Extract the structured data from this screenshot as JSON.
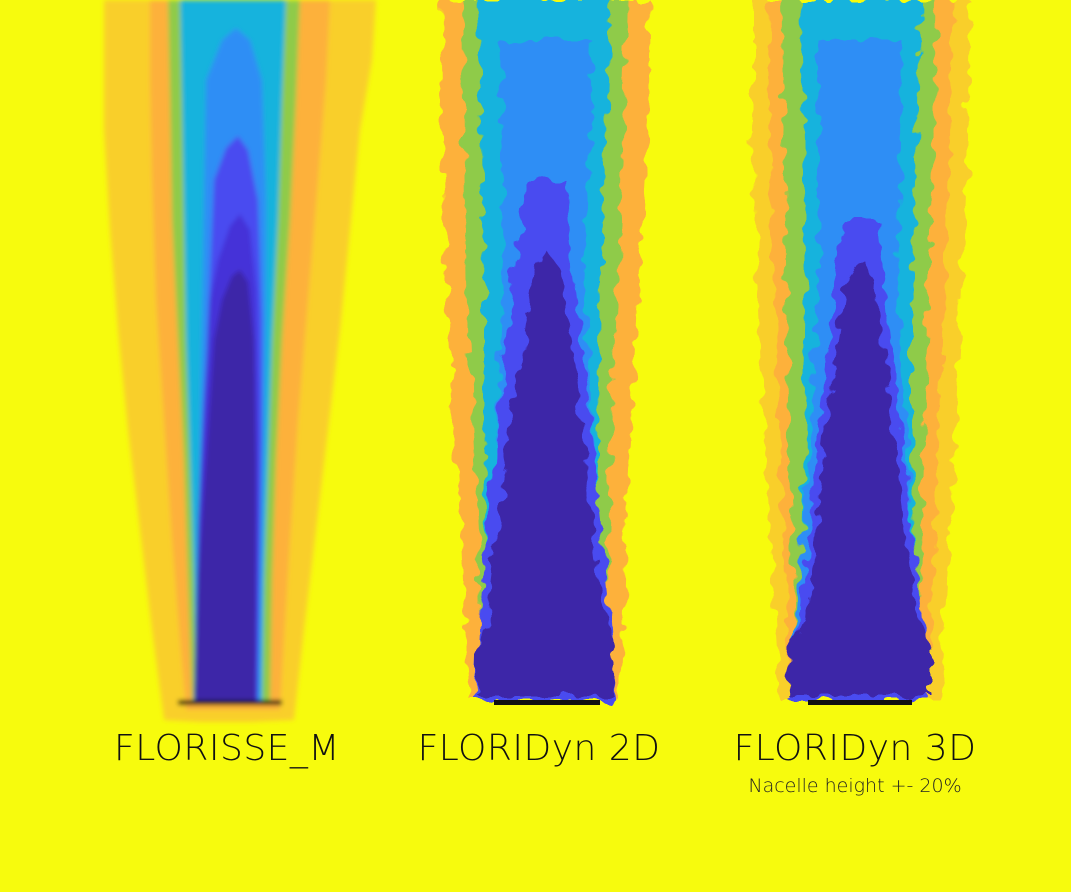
{
  "background_color": "#f7fb0d",
  "colors": {
    "core": "#3e26a8",
    "blue": "#4a4cf0",
    "sky": "#2f8ef5",
    "cyan": "#12b3dd",
    "teal": "#38c3a0",
    "green": "#8fcb4a",
    "orange": "#fdb13a",
    "gold": "#f9cf2c",
    "rotor": "#111111"
  },
  "panels": [
    {
      "id": "florisse-m",
      "title": "FLORISSE_M",
      "subtitle": ""
    },
    {
      "id": "floridyn-2d",
      "title": "FLORIDyn 2D",
      "subtitle": ""
    },
    {
      "id": "floridyn-3d",
      "title": "FLORIDyn 3D",
      "subtitle": "Nacelle height +- 20%"
    }
  ]
}
